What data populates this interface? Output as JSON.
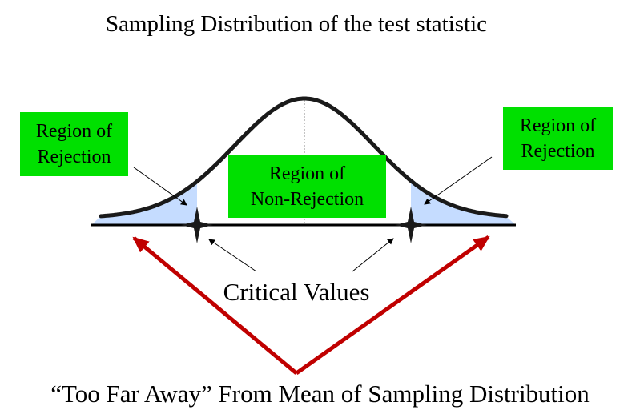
{
  "title": "Sampling Distribution of the test statistic",
  "labels": {
    "left_rejection": [
      "Region of",
      "Rejection"
    ],
    "non_rejection": [
      "Region of",
      "Non-Rejection"
    ],
    "right_rejection": [
      "Region of",
      "Rejection"
    ],
    "critical_values": "Critical Values",
    "footer": "“Too Far Away” From Mean of Sampling Distribution"
  },
  "colors": {
    "label_box": "#00e000",
    "rejection_shading": "#c5dcff",
    "red_arrows": "#c00000",
    "curve": "#1a1a1a"
  }
}
